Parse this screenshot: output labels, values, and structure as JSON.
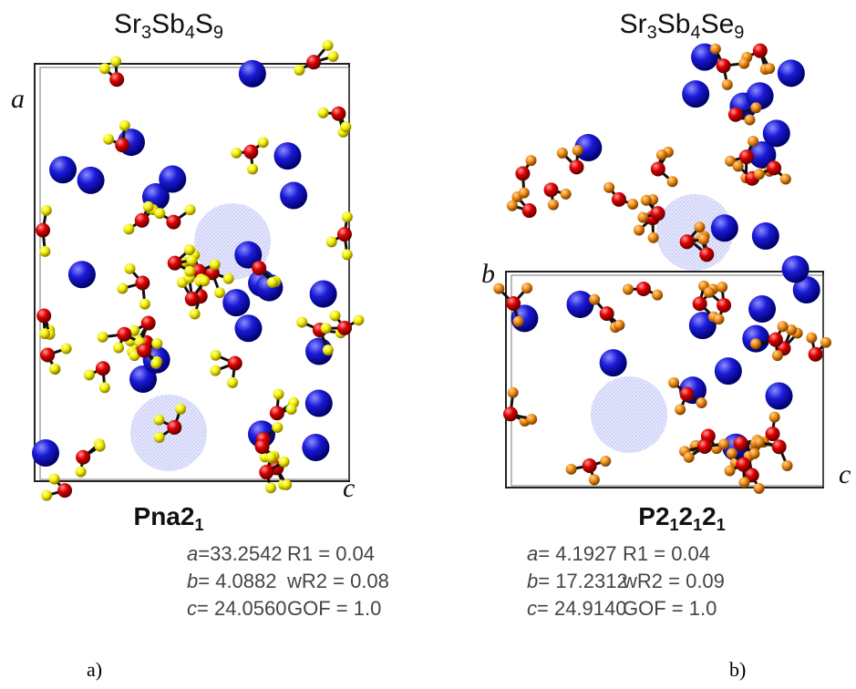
{
  "panels": [
    {
      "formula": [
        "Sr",
        "3",
        "Sb",
        "4",
        "S",
        "9"
      ],
      "axis_labels": [
        "a",
        "c"
      ],
      "space_group": [
        "Pna2",
        "1"
      ],
      "parameters": [
        {
          "axis": "a",
          "value": "=33.2542",
          "stat": "R1 = 0.04"
        },
        {
          "axis": "b",
          "value": "= 4.0882",
          "stat": "wR2 = 0.08"
        },
        {
          "axis": "c",
          "value": "= 24.0560",
          "stat": "GOF = 1.0"
        }
      ],
      "label": "a)"
    },
    {
      "formula": [
        "Sr",
        "3",
        "Sb",
        "4",
        "Se",
        "9"
      ],
      "axis_labels": [
        "b",
        "c"
      ],
      "space_group": [
        "P2",
        "1",
        "2",
        "1",
        "2",
        "1"
      ],
      "parameters": [
        {
          "axis": "a",
          "value": "= 4.1927",
          "stat": "R1 = 0.04"
        },
        {
          "axis": "b",
          "value": "= 17.2312",
          "stat": "wR2 = 0.09"
        },
        {
          "axis": "c",
          "value": "= 24.9140",
          "stat": "GOF = 1.0"
        }
      ],
      "label": "b)"
    }
  ]
}
